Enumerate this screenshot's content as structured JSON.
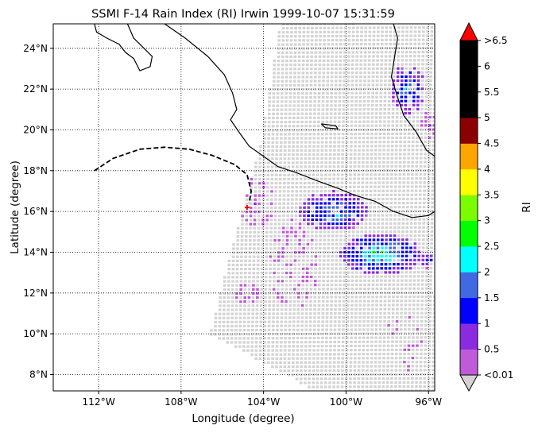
{
  "chart_data": {
    "type": "heatmap",
    "title": "SSMI F-14 Rain Index (RI) Irwin 1999-10-07 15:31:59",
    "xlabel": "Longitude (degree)",
    "ylabel": "Latitude (degree)",
    "xlim": [
      -114.2,
      -95.7
    ],
    "ylim": [
      7.2,
      25.2
    ],
    "grid": true,
    "grid_style": "dotted",
    "x_ticks": [
      {
        "value": -112,
        "label": "112°W"
      },
      {
        "value": -108,
        "label": "108°W"
      },
      {
        "value": -104,
        "label": "104°W"
      },
      {
        "value": -100,
        "label": "100°W"
      },
      {
        "value": -96,
        "label": "96°W"
      }
    ],
    "y_ticks": [
      {
        "value": 8,
        "label": "8°N"
      },
      {
        "value": 10,
        "label": "10°N"
      },
      {
        "value": 12,
        "label": "12°N"
      },
      {
        "value": 14,
        "label": "14°N"
      },
      {
        "value": 16,
        "label": "16°N"
      },
      {
        "value": 18,
        "label": "18°N"
      },
      {
        "value": 20,
        "label": "20°N"
      },
      {
        "value": 22,
        "label": "22°N"
      },
      {
        "value": 24,
        "label": "24°N"
      }
    ],
    "colorbar": {
      "label": "RI",
      "tick_labels": [
        "<0.01",
        "0.5",
        "1",
        "1.5",
        "2",
        "2.5",
        "3",
        "3.5",
        "4",
        "4.5",
        "5",
        "5.5",
        "6",
        ">6.5"
      ],
      "colors": [
        "#bf5bd6",
        "#8a2be2",
        "#0000ff",
        "#4169e1",
        "#00ffff",
        "#00ff00",
        "#7cfc00",
        "#ffff00",
        "#ffa500",
        "#8b0000",
        "#000000",
        "#000000",
        "#000000"
      ],
      "under_color": "#d3d3d3",
      "over_color": "#ff0000"
    },
    "no_rain_color": "#d3d3d3",
    "swath_outline": [
      [
        -103.2,
        25.2
      ],
      [
        -95.7,
        25.2
      ],
      [
        -95.7,
        7.2
      ],
      [
        -101.5,
        7.2
      ],
      [
        -106.6,
        10.0
      ],
      [
        -105.6,
        14.0
      ],
      [
        -104.2,
        19.0
      ]
    ],
    "track": {
      "style": "dashed",
      "points": [
        [
          -112.2,
          18.0
        ],
        [
          -111.3,
          18.6
        ],
        [
          -110.0,
          19.05
        ],
        [
          -108.8,
          19.15
        ],
        [
          -107.6,
          19.05
        ],
        [
          -106.5,
          18.75
        ],
        [
          -105.4,
          18.3
        ],
        [
          -104.8,
          17.8
        ],
        [
          -104.6,
          17.0
        ],
        [
          -104.7,
          16.4
        ]
      ]
    },
    "storm_position": {
      "lon": -104.8,
      "lat": 16.2,
      "color": "#ff0000"
    },
    "rain_clusters": [
      {
        "lon": -98.3,
        "lat": 13.9,
        "rlon": 2.0,
        "rlat": 1.0,
        "peak": 2.8,
        "density": 0.95
      },
      {
        "lon": -100.6,
        "lat": 16.0,
        "rlon": 1.7,
        "rlat": 1.0,
        "peak": 2.3,
        "density": 0.9
      },
      {
        "lon": -97.0,
        "lat": 22.0,
        "rlon": 0.9,
        "rlat": 1.2,
        "peak": 2.1,
        "density": 0.75
      },
      {
        "lon": -96.0,
        "lat": 13.6,
        "rlon": 0.4,
        "rlat": 0.4,
        "peak": 1.6,
        "density": 0.9
      },
      {
        "lon": -102.5,
        "lat": 13.4,
        "rlon": 1.2,
        "rlat": 2.2,
        "peak": 0.5,
        "density": 0.35
      },
      {
        "lon": -104.4,
        "lat": 16.4,
        "rlon": 1.0,
        "rlat": 1.2,
        "peak": 0.6,
        "density": 0.45
      },
      {
        "lon": -104.8,
        "lat": 12.0,
        "rlon": 0.6,
        "rlat": 0.5,
        "peak": 0.4,
        "density": 0.45
      },
      {
        "lon": -96.0,
        "lat": 20.3,
        "rlon": 0.4,
        "rlat": 0.7,
        "peak": 0.7,
        "density": 0.6
      },
      {
        "lon": -97.2,
        "lat": 9.5,
        "rlon": 0.9,
        "rlat": 1.6,
        "peak": 0.3,
        "density": 0.2
      }
    ],
    "coastlines": [
      [
        [
          -112.2,
          25.2
        ],
        [
          -112.1,
          24.8
        ],
        [
          -111.6,
          24.5
        ],
        [
          -111.0,
          24.2
        ],
        [
          -110.7,
          23.8
        ],
        [
          -110.3,
          23.5
        ],
        [
          -110.0,
          22.9
        ],
        [
          -109.5,
          23.1
        ],
        [
          -109.4,
          23.6
        ],
        [
          -110.0,
          24.2
        ],
        [
          -110.3,
          24.5
        ],
        [
          -110.6,
          25.2
        ]
      ],
      [
        [
          -108.8,
          25.2
        ],
        [
          -107.8,
          24.5
        ],
        [
          -106.7,
          23.6
        ],
        [
          -105.9,
          22.7
        ],
        [
          -105.5,
          21.8
        ],
        [
          -105.3,
          21.0
        ],
        [
          -105.6,
          20.5
        ],
        [
          -105.2,
          19.9
        ],
        [
          -104.7,
          19.2
        ],
        [
          -104.0,
          18.7
        ],
        [
          -103.3,
          18.2
        ],
        [
          -102.4,
          17.9
        ],
        [
          -101.4,
          17.5
        ],
        [
          -100.3,
          17.1
        ],
        [
          -99.6,
          16.8
        ],
        [
          -98.6,
          16.5
        ],
        [
          -97.7,
          16.0
        ],
        [
          -96.8,
          15.7
        ],
        [
          -96.0,
          15.8
        ],
        [
          -95.7,
          16.0
        ]
      ],
      [
        [
          -97.7,
          25.2
        ],
        [
          -97.5,
          24.5
        ],
        [
          -97.8,
          22.6
        ],
        [
          -97.5,
          21.6
        ],
        [
          -97.2,
          20.7
        ],
        [
          -96.6,
          19.9
        ],
        [
          -96.1,
          19.0
        ],
        [
          -95.7,
          18.7
        ]
      ],
      [
        [
          -101.2,
          20.3
        ],
        [
          -100.5,
          20.2
        ],
        [
          -100.4,
          20.05
        ],
        [
          -101.0,
          20.1
        ],
        [
          -101.2,
          20.3
        ]
      ]
    ]
  }
}
